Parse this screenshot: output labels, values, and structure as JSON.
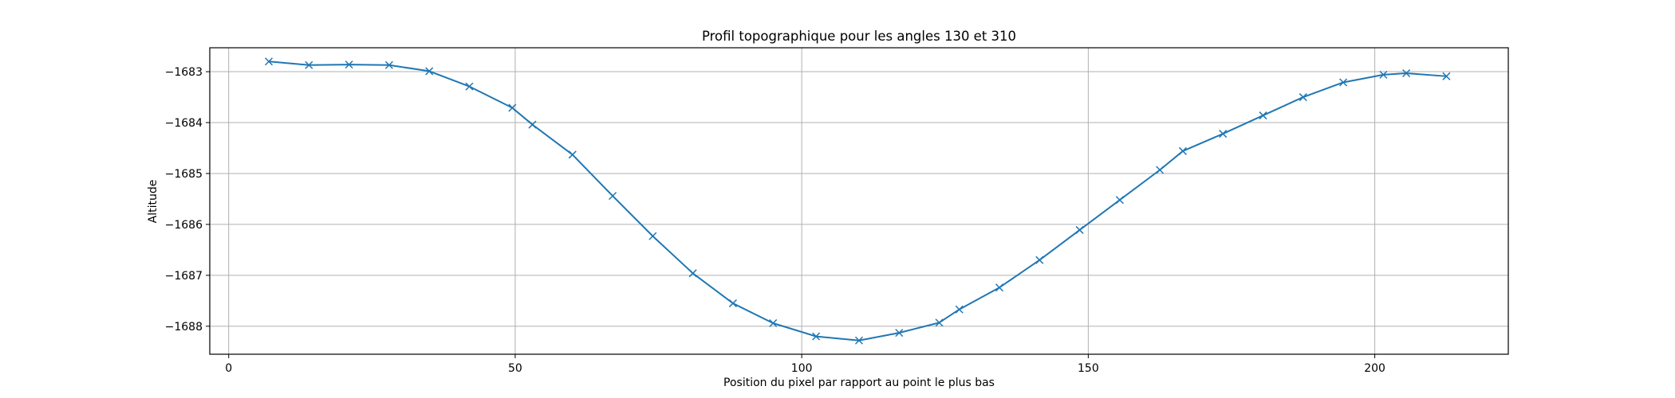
{
  "chart_data": {
    "type": "line",
    "title": "Profil topographique pour les angles 130 et 310",
    "xlabel": "Position du pixel par rapport au point le plus bas",
    "ylabel": "Altitude",
    "xlim": [
      -3.3,
      223.3
    ],
    "ylim": [
      -1688.55,
      -1682.53
    ],
    "xticks": [
      0,
      50,
      100,
      150,
      200
    ],
    "xtick_labels": [
      "0",
      "50",
      "100",
      "150",
      "200"
    ],
    "yticks": [
      -1683,
      -1684,
      -1685,
      -1686,
      -1687,
      -1688
    ],
    "ytick_labels": [
      "−1683",
      "−1684",
      "−1685",
      "−1686",
      "−1687",
      "−1688"
    ],
    "grid": true,
    "marker": "x",
    "color": "#1f77b4",
    "series": [
      {
        "x": [
          7,
          14,
          21,
          28,
          35,
          42,
          49.5,
          53,
          60,
          67,
          74,
          81,
          88,
          95,
          102.5,
          110,
          117,
          124,
          127.5,
          134.5,
          141.5,
          148.5,
          155.5,
          162.5,
          166.5,
          173.5,
          180.5,
          187.5,
          194.5,
          201.5,
          205.5,
          212.5
        ],
        "y": [
          -1682.8,
          -1682.87,
          -1682.86,
          -1682.87,
          -1682.99,
          -1683.29,
          -1683.71,
          -1684.04,
          -1684.63,
          -1685.44,
          -1686.23,
          -1686.96,
          -1687.55,
          -1687.94,
          -1688.2,
          -1688.28,
          -1688.13,
          -1687.93,
          -1687.67,
          -1687.24,
          -1686.7,
          -1686.11,
          -1685.52,
          -1684.93,
          -1684.56,
          -1684.22,
          -1683.86,
          -1683.5,
          -1683.21,
          -1683.06,
          -1683.03,
          -1683.09
        ]
      }
    ]
  }
}
